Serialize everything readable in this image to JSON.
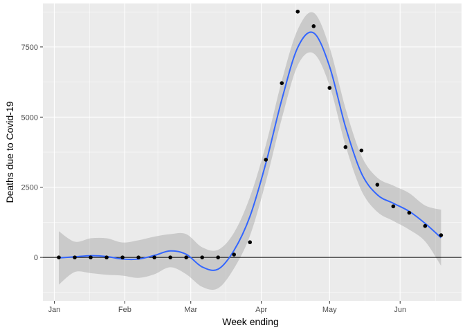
{
  "chart_data": {
    "type": "scatter",
    "title": "",
    "xlabel": "Week ending",
    "ylabel": "Deaths due to Covid-19",
    "x_tick_labels": [
      "Jan",
      "Feb",
      "Mar",
      "Apr",
      "May",
      "Jun"
    ],
    "x_ticks": [
      "2020-01-01",
      "2020-02-01",
      "2020-03-01",
      "2020-04-01",
      "2020-05-01",
      "2020-06-01"
    ],
    "y_tick_labels": [
      "0",
      "2500",
      "5000",
      "7500"
    ],
    "y_ticks": [
      0,
      2500,
      5000,
      7500
    ],
    "xlim": [
      "2019-12-27",
      "2020-06-28"
    ],
    "ylim": [
      -1550,
      9050
    ],
    "grid": true,
    "legend": "none",
    "reference_line": {
      "y": 0,
      "color": "#000000"
    },
    "series": [
      {
        "type": "scatter",
        "color": "#000000",
        "points": [
          {
            "x": "2020-01-03",
            "y": 0
          },
          {
            "x": "2020-01-10",
            "y": 0
          },
          {
            "x": "2020-01-17",
            "y": 0
          },
          {
            "x": "2020-01-24",
            "y": 0
          },
          {
            "x": "2020-01-31",
            "y": 0
          },
          {
            "x": "2020-02-07",
            "y": 0
          },
          {
            "x": "2020-02-14",
            "y": 0
          },
          {
            "x": "2020-02-21",
            "y": 0
          },
          {
            "x": "2020-02-28",
            "y": 0
          },
          {
            "x": "2020-03-06",
            "y": 0
          },
          {
            "x": "2020-03-13",
            "y": 0
          },
          {
            "x": "2020-03-20",
            "y": 100
          },
          {
            "x": "2020-03-27",
            "y": 540
          },
          {
            "x": "2020-04-03",
            "y": 3480
          },
          {
            "x": "2020-04-10",
            "y": 6210
          },
          {
            "x": "2020-04-17",
            "y": 8760
          },
          {
            "x": "2020-04-24",
            "y": 8240
          },
          {
            "x": "2020-05-01",
            "y": 6040
          },
          {
            "x": "2020-05-08",
            "y": 3930
          },
          {
            "x": "2020-05-15",
            "y": 3810
          },
          {
            "x": "2020-05-22",
            "y": 2590
          },
          {
            "x": "2020-05-29",
            "y": 1820
          },
          {
            "x": "2020-06-05",
            "y": 1590
          },
          {
            "x": "2020-06-12",
            "y": 1120
          },
          {
            "x": "2020-06-19",
            "y": 790
          }
        ]
      },
      {
        "type": "smooth",
        "color": "#3366FF",
        "band_color": "#999999",
        "points": [
          {
            "x": "2020-01-03",
            "y": -20,
            "lower": -970,
            "upper": 930
          },
          {
            "x": "2020-01-10",
            "y": 20,
            "lower": -520,
            "upper": 560
          },
          {
            "x": "2020-01-17",
            "y": 60,
            "lower": -560,
            "upper": 680
          },
          {
            "x": "2020-01-24",
            "y": 30,
            "lower": -620,
            "upper": 680
          },
          {
            "x": "2020-01-31",
            "y": -60,
            "lower": -650,
            "upper": 530
          },
          {
            "x": "2020-02-07",
            "y": -60,
            "lower": -730,
            "upper": 610
          },
          {
            "x": "2020-02-14",
            "y": 70,
            "lower": -600,
            "upper": 740
          },
          {
            "x": "2020-02-21",
            "y": 230,
            "lower": -350,
            "upper": 830
          },
          {
            "x": "2020-02-28",
            "y": 110,
            "lower": -600,
            "upper": 830
          },
          {
            "x": "2020-03-06",
            "y": -340,
            "lower": -1050,
            "upper": 360
          },
          {
            "x": "2020-03-13",
            "y": -420,
            "lower": -1100,
            "upper": 270
          },
          {
            "x": "2020-03-20",
            "y": 250,
            "lower": -390,
            "upper": 880
          },
          {
            "x": "2020-03-27",
            "y": 1460,
            "lower": 770,
            "upper": 2150
          },
          {
            "x": "2020-04-03",
            "y": 3360,
            "lower": 2700,
            "upper": 4010
          },
          {
            "x": "2020-04-10",
            "y": 5620,
            "lower": 4950,
            "upper": 6290
          },
          {
            "x": "2020-04-17",
            "y": 7480,
            "lower": 6840,
            "upper": 8120
          },
          {
            "x": "2020-04-24",
            "y": 8000,
            "lower": 7270,
            "upper": 8720
          },
          {
            "x": "2020-05-01",
            "y": 6800,
            "lower": 6120,
            "upper": 7480
          },
          {
            "x": "2020-05-08",
            "y": 4650,
            "lower": 3990,
            "upper": 5310
          },
          {
            "x": "2020-05-15",
            "y": 3000,
            "lower": 2380,
            "upper": 3620
          },
          {
            "x": "2020-05-22",
            "y": 2230,
            "lower": 1620,
            "upper": 2840
          },
          {
            "x": "2020-05-29",
            "y": 1930,
            "lower": 1300,
            "upper": 2560
          },
          {
            "x": "2020-06-05",
            "y": 1640,
            "lower": 990,
            "upper": 2290
          },
          {
            "x": "2020-06-12",
            "y": 1210,
            "lower": 570,
            "upper": 1850
          },
          {
            "x": "2020-06-19",
            "y": 700,
            "lower": -300,
            "upper": 1700
          }
        ]
      }
    ]
  }
}
